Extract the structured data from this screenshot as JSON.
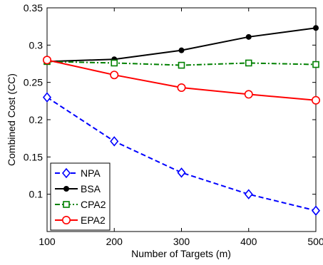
{
  "chart_data": {
    "type": "line",
    "title": "",
    "xlabel": "Number of Targets (m)",
    "ylabel": "Combined Cost (CC)",
    "xlim": [
      100,
      500
    ],
    "ylim": [
      0.05,
      0.35
    ],
    "xticks": [
      100,
      200,
      300,
      400,
      500
    ],
    "xtick_labels": [
      "100",
      "200",
      "300",
      "400",
      "500"
    ],
    "yticks": [
      0.1,
      0.15,
      0.2,
      0.25,
      0.3,
      0.35
    ],
    "ytick_labels": [
      "0.1",
      "0.15",
      "0.2",
      "0.25",
      "0.3",
      "0.35"
    ],
    "grid": false,
    "legend_position": "bottom-left",
    "x": [
      100,
      200,
      300,
      400,
      500
    ],
    "series": [
      {
        "name": "NPA",
        "values": [
          0.23,
          0.171,
          0.129,
          0.1,
          0.078
        ],
        "color": "#0000ff",
        "dash": "dashed",
        "marker": "diamond"
      },
      {
        "name": "BSA",
        "values": [
          0.278,
          0.281,
          0.293,
          0.311,
          0.323
        ],
        "color": "#000000",
        "dash": "solid",
        "marker": "dot"
      },
      {
        "name": "CPA2",
        "values": [
          0.278,
          0.276,
          0.273,
          0.276,
          0.274
        ],
        "color": "#008000",
        "dash": "dashdot",
        "marker": "square"
      },
      {
        "name": "EPA2",
        "values": [
          0.28,
          0.26,
          0.243,
          0.234,
          0.226
        ],
        "color": "#ff0000",
        "dash": "solid",
        "marker": "circle"
      }
    ]
  }
}
